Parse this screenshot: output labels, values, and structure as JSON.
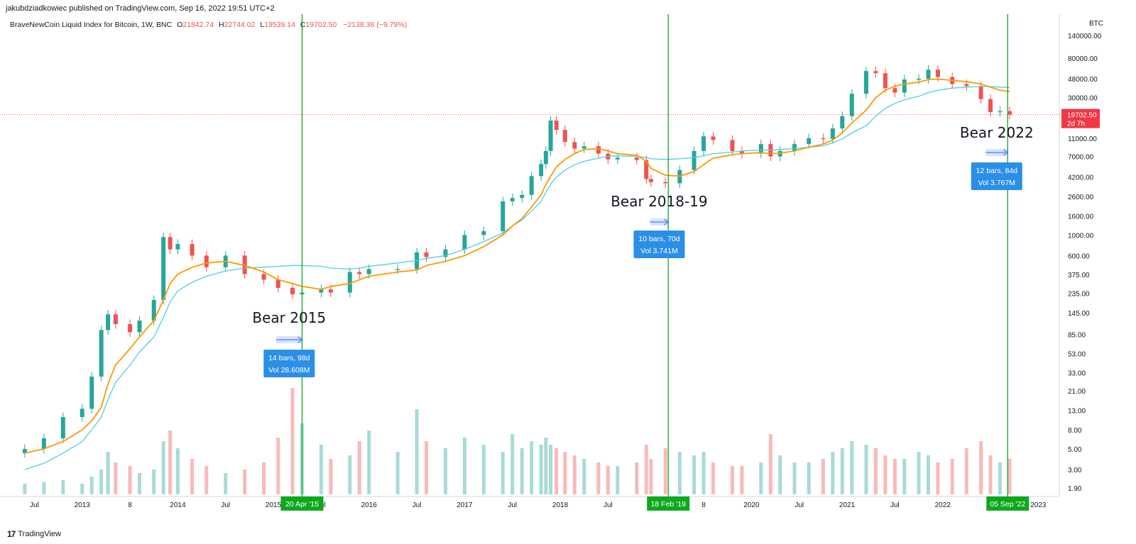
{
  "header": {
    "published": "jakubdziadkowiec published on TradingView.com, Sep 16, 2022 19:51 UTC+2"
  },
  "legend": {
    "symbol": "BraveNewCoin Liquid Index for Bitcoin, 1W, BNC",
    "open_label": "O",
    "open": "21842.74",
    "high_label": "H",
    "high": "22744.02",
    "low_label": "L",
    "low": "19539.14",
    "close_label": "C",
    "close": "19702.50",
    "change": "−2138.38 (−9.79%)"
  },
  "footer": {
    "brand": "TradingView",
    "logo": "17"
  },
  "colors": {
    "up": "#26a69a",
    "down": "#ef5350",
    "ma_fast": "#ff9800",
    "ma_slow": "#4dd0e1",
    "vline": "#0da91d",
    "tag_blue": "#2b8fe6",
    "price_tag": "#f23645"
  },
  "chart_data": {
    "type": "candlestick",
    "y_scale": "log",
    "currency": "BTC",
    "ylim": [
      1.9,
      140000
    ],
    "y_ticks": [
      "140000.00",
      "80000.00",
      "48000.00",
      "30000.00",
      "19702.50",
      "11000.00",
      "7000.00",
      "4200.00",
      "2600.00",
      "1600.00",
      "1000.00",
      "600.00",
      "375.00",
      "235.00",
      "145.00",
      "85.00",
      "53.00",
      "33.00",
      "21.00",
      "13.00",
      "8.00",
      "5.00",
      "3.00",
      "1.90"
    ],
    "x_ticks": [
      "Jul",
      "2013",
      "8",
      "2014",
      "Jul",
      "2015",
      "Jul",
      "2016",
      "Jul",
      "2017",
      "Jul",
      "2018",
      "Jul",
      "8",
      "2020",
      "Jul",
      "2021",
      "Jul",
      "2022",
      "2023"
    ],
    "last_price": {
      "value": "19702.50",
      "countdown": "2d 7h"
    },
    "price_series": {
      "dates": [
        2012.4,
        2012.6,
        2012.8,
        2013.0,
        2013.1,
        2013.2,
        2013.27,
        2013.35,
        2013.5,
        2013.6,
        2013.75,
        2013.85,
        2013.92,
        2014.0,
        2014.15,
        2014.3,
        2014.5,
        2014.7,
        2014.9,
        2015.05,
        2015.2,
        2015.3,
        2015.5,
        2015.6,
        2015.8,
        2015.9,
        2016.0,
        2016.3,
        2016.5,
        2016.6,
        2016.8,
        2017.0,
        2017.2,
        2017.4,
        2017.5,
        2017.6,
        2017.7,
        2017.8,
        2017.85,
        2017.9,
        2017.96,
        2018.05,
        2018.15,
        2018.25,
        2018.4,
        2018.5,
        2018.6,
        2018.8,
        2018.9,
        2018.95,
        2019.1,
        2019.25,
        2019.4,
        2019.5,
        2019.6,
        2019.8,
        2019.9,
        2020.1,
        2020.2,
        2020.3,
        2020.45,
        2020.6,
        2020.75,
        2020.85,
        2020.95,
        2021.05,
        2021.2,
        2021.3,
        2021.4,
        2021.5,
        2021.6,
        2021.75,
        2021.85,
        2021.95,
        2022.1,
        2022.25,
        2022.4,
        2022.5,
        2022.6,
        2022.7
      ],
      "close": [
        5.0,
        6.5,
        11,
        13.5,
        30,
        95,
        140,
        110,
        90,
        120,
        200,
        950,
        700,
        800,
        600,
        450,
        600,
        380,
        330,
        270,
        230,
        240,
        260,
        240,
        400,
        380,
        430,
        430,
        650,
        580,
        700,
        1000,
        1100,
        2300,
        2500,
        2700,
        4300,
        5800,
        8000,
        17000,
        13500,
        10000,
        8500,
        9000,
        7500,
        6500,
        6800,
        6400,
        4000,
        3700,
        3600,
        5000,
        8000,
        11500,
        10500,
        8000,
        7500,
        9500,
        7000,
        8000,
        9500,
        11000,
        10800,
        14000,
        19000,
        33000,
        58000,
        55000,
        38000,
        34000,
        47000,
        48000,
        60000,
        50000,
        42000,
        40000,
        29000,
        21000,
        21500,
        19702.5
      ],
      "ma_fast": [
        4.5,
        5.0,
        6.0,
        8.0,
        10,
        14,
        25,
        40,
        60,
        80,
        120,
        200,
        300,
        380,
        450,
        500,
        520,
        470,
        400,
        330,
        300,
        280,
        260,
        280,
        300,
        330,
        360,
        400,
        420,
        470,
        520,
        600,
        750,
        1000,
        1250,
        1500,
        2000,
        2700,
        3500,
        4300,
        5400,
        6500,
        7500,
        8300,
        8500,
        8000,
        7500,
        7200,
        6200,
        5200,
        4400,
        4300,
        4800,
        5700,
        6700,
        7300,
        7500,
        7700,
        7500,
        7600,
        8000,
        8800,
        9500,
        10500,
        12500,
        16000,
        22000,
        30000,
        36000,
        40000,
        42000,
        44000,
        47000,
        47500,
        46000,
        44500,
        42000,
        39000,
        36000,
        35000
      ],
      "ma_slow": [
        3.0,
        3.5,
        4.5,
        6.0,
        8,
        11,
        17,
        26,
        40,
        55,
        80,
        130,
        190,
        250,
        310,
        360,
        410,
        440,
        450,
        460,
        470,
        470,
        460,
        440,
        430,
        440,
        460,
        500,
        530,
        560,
        600,
        700,
        850,
        1050,
        1250,
        1450,
        1800,
        2300,
        2900,
        3500,
        4200,
        5000,
        5700,
        6200,
        6700,
        7000,
        7100,
        7000,
        6800,
        6600,
        6500,
        6600,
        6800,
        7100,
        7500,
        7800,
        8000,
        8200,
        8200,
        8300,
        8500,
        8800,
        9100,
        9800,
        10800,
        12500,
        15000,
        19000,
        23000,
        26000,
        28500,
        31000,
        34000,
        36000,
        38000,
        39000,
        39500,
        39500,
        39000,
        38500
      ]
    },
    "volume_series": [
      0.3,
      0.35,
      0.4,
      0.3,
      0.5,
      0.7,
      1.2,
      0.9,
      0.8,
      0.6,
      0.7,
      1.5,
      1.8,
      1.3,
      1.0,
      0.8,
      0.6,
      0.7,
      0.9,
      1.6,
      3.0,
      2.0,
      1.4,
      1.0,
      1.1,
      1.5,
      1.8,
      1.2,
      2.4,
      1.5,
      1.3,
      1.6,
      1.4,
      1.2,
      1.7,
      1.3,
      1.5,
      1.4,
      1.6,
      1.4,
      1.3,
      1.2,
      1.1,
      1.0,
      0.9,
      0.8,
      0.8,
      0.9,
      1.4,
      1.0,
      1.3,
      1.2,
      1.1,
      1.2,
      0.9,
      0.8,
      0.8,
      0.9,
      1.7,
      1.1,
      0.9,
      0.9,
      1.0,
      1.2,
      1.3,
      1.5,
      1.4,
      1.3,
      1.1,
      1.0,
      1.0,
      1.2,
      1.1,
      0.9,
      1.0,
      1.3,
      1.5,
      1.1,
      0.9,
      1.0
    ],
    "markers": [
      {
        "date": 2015.3,
        "label": "20 Apr '15",
        "range_start": 2015.03,
        "annotation": "Bear 2015",
        "bars": "14 bars, 98d",
        "vol": "Vol 28.608M"
      },
      {
        "date": 2019.13,
        "label": "18 Feb '19",
        "range_start": 2018.94,
        "annotation": "Bear 2018-19",
        "bars": "10 bars, 70d",
        "vol": "Vol 3.741M"
      },
      {
        "date": 2022.68,
        "label": "05 Sep '22",
        "range_start": 2022.45,
        "annotation": "Bear 2022",
        "bars": "12 bars, 84d",
        "vol": "Vol 3.767M"
      }
    ]
  }
}
